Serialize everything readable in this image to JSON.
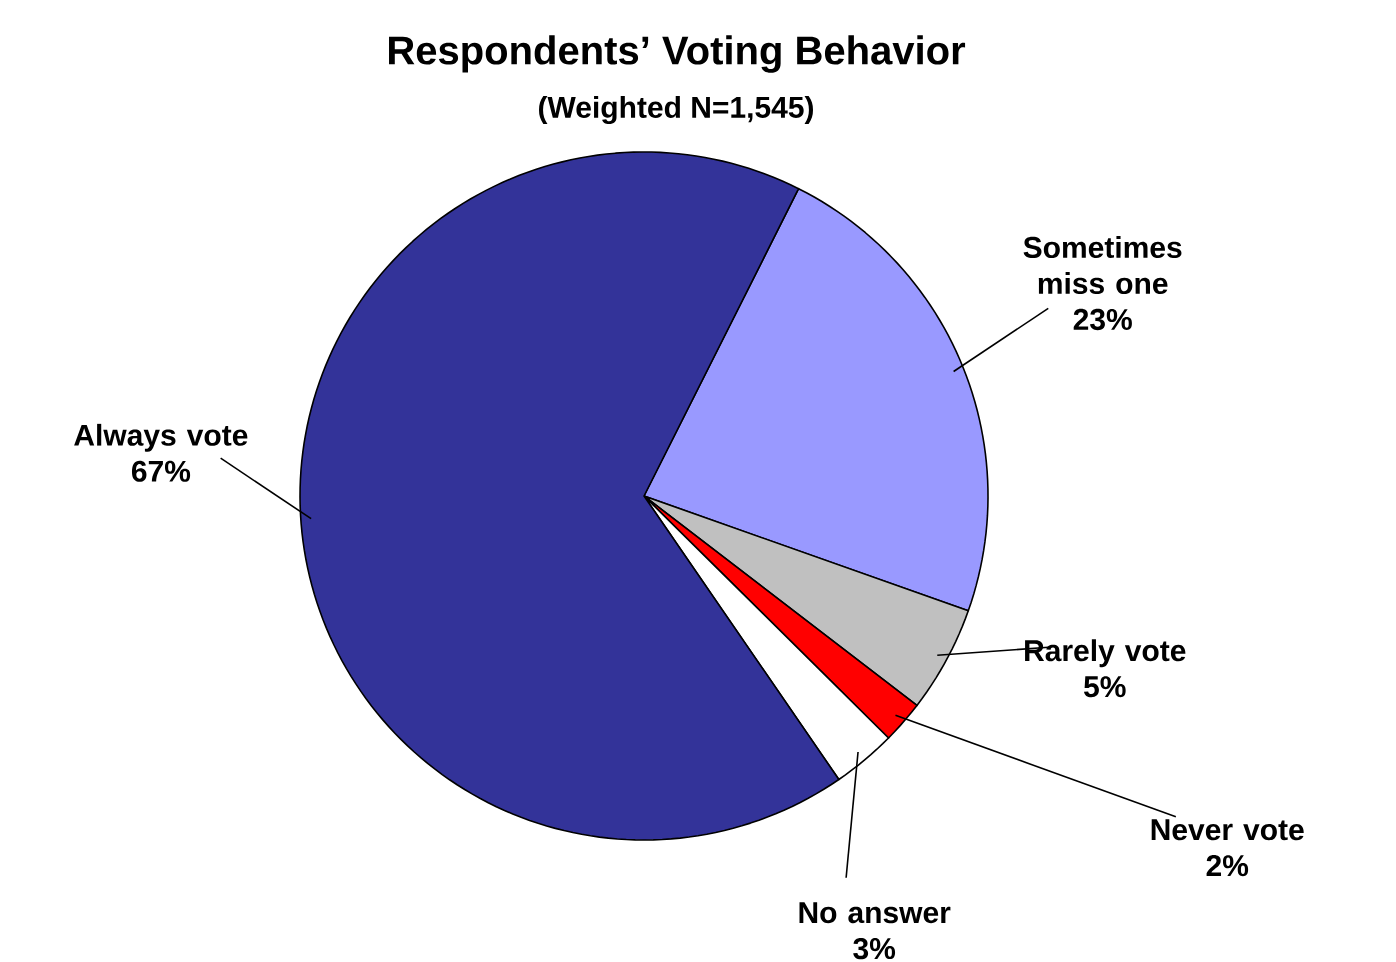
{
  "chart_data": {
    "type": "pie",
    "title": "Respondents’ Voting Behavior",
    "subtitle": "(Weighted N=1,545)",
    "categories": [
      "Sometimes miss one",
      "Rarely vote",
      "Never vote",
      "No answer",
      "Always vote"
    ],
    "values": [
      23,
      5,
      2,
      3,
      67
    ],
    "colors": [
      "#9999ff",
      "#c0c0c0",
      "#ff0000",
      "#ffffff",
      "#333399"
    ],
    "value_labels": [
      "23%",
      "5%",
      "2%",
      "3%",
      "67%"
    ]
  }
}
